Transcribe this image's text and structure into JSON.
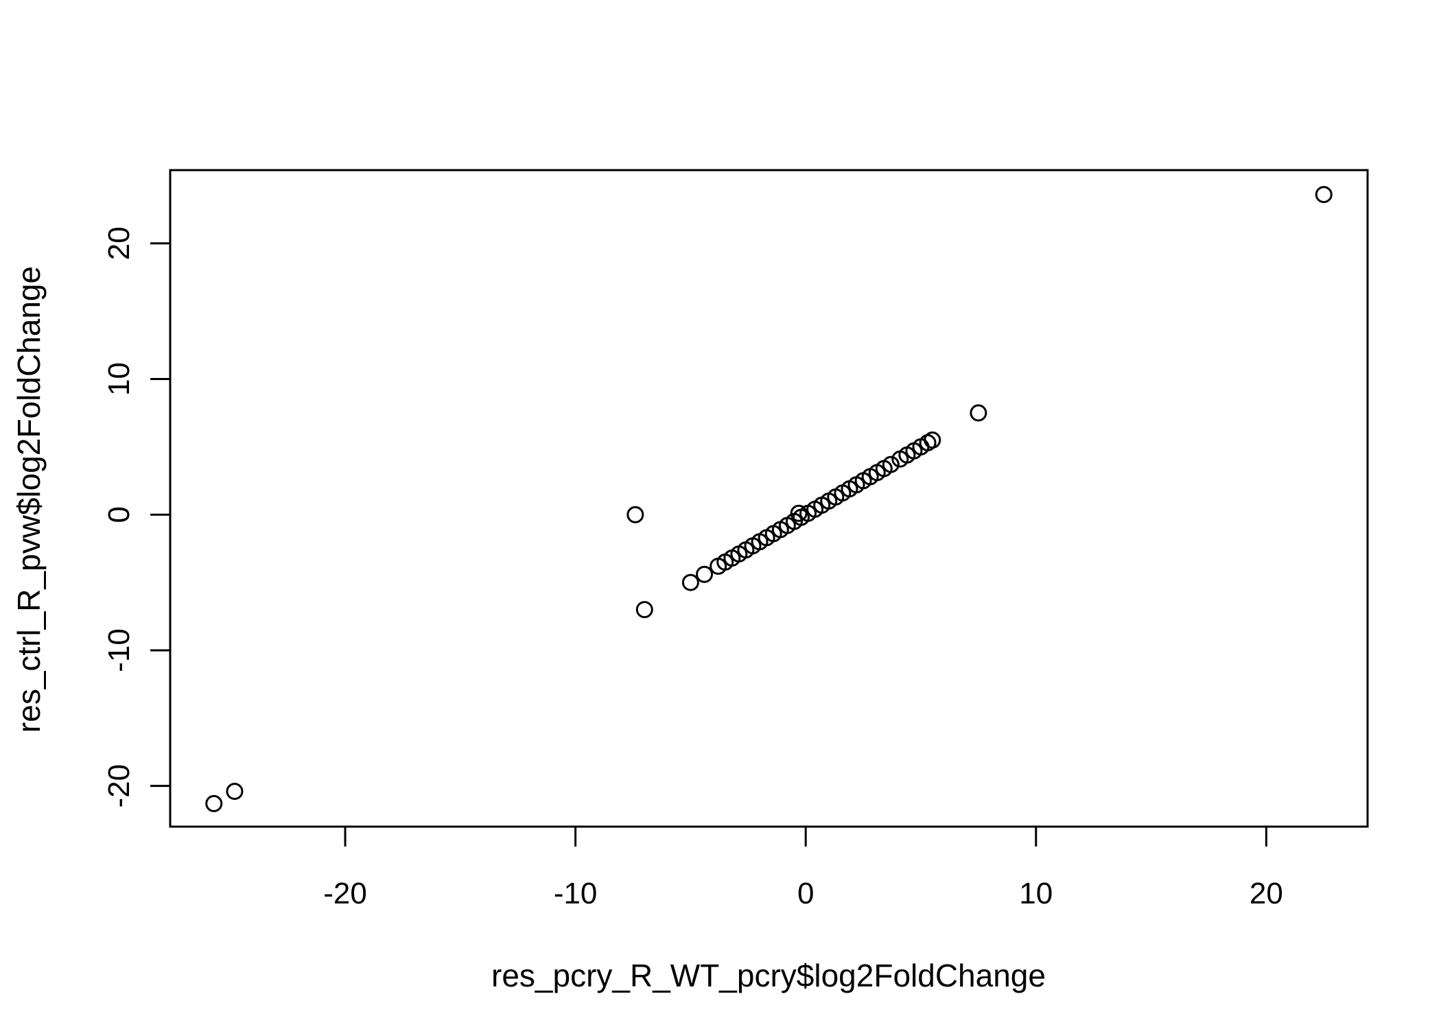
{
  "chart_data": {
    "type": "scatter",
    "title": "",
    "xlabel": "res_pcry_R_WT_pcry$log2FoldChange",
    "ylabel": "res_ctrl_R_pvw$log2FoldChange",
    "xlim": [
      -27.6,
      24.4
    ],
    "ylim": [
      -23.0,
      25.4
    ],
    "x_ticks": [
      -20,
      -10,
      0,
      10,
      20
    ],
    "y_ticks": [
      -20,
      -10,
      0,
      10,
      20
    ],
    "x_tick_labels": [
      "-20",
      "-10",
      "0",
      "10",
      "20"
    ],
    "y_tick_labels": [
      "-20",
      "-10",
      "0",
      "10",
      "20"
    ],
    "grid": false,
    "marker": "open-circle",
    "point_color": "#000000",
    "points": [
      {
        "x": 22.5,
        "y": 23.6
      },
      {
        "x": -25.7,
        "y": -21.3
      },
      {
        "x": -24.8,
        "y": -20.4
      },
      {
        "x": -7.4,
        "y": 0.0
      },
      {
        "x": -7.0,
        "y": -7.0
      },
      {
        "x": 7.5,
        "y": 7.5
      },
      {
        "x": -5.0,
        "y": -5.0
      },
      {
        "x": -4.4,
        "y": -4.4
      },
      {
        "x": -3.8,
        "y": -3.8
      },
      {
        "x": -3.5,
        "y": -3.5
      },
      {
        "x": -3.2,
        "y": -3.2
      },
      {
        "x": -2.9,
        "y": -2.9
      },
      {
        "x": -2.6,
        "y": -2.6
      },
      {
        "x": -2.3,
        "y": -2.3
      },
      {
        "x": -2.0,
        "y": -2.0
      },
      {
        "x": -1.7,
        "y": -1.7
      },
      {
        "x": -1.4,
        "y": -1.4
      },
      {
        "x": -1.1,
        "y": -1.1
      },
      {
        "x": -0.8,
        "y": -0.8
      },
      {
        "x": -0.5,
        "y": -0.5
      },
      {
        "x": -0.3,
        "y": 0.1
      },
      {
        "x": -0.2,
        "y": -0.2
      },
      {
        "x": 0.1,
        "y": 0.1
      },
      {
        "x": 0.4,
        "y": 0.4
      },
      {
        "x": 0.7,
        "y": 0.7
      },
      {
        "x": 1.0,
        "y": 1.0
      },
      {
        "x": 1.3,
        "y": 1.3
      },
      {
        "x": 1.6,
        "y": 1.6
      },
      {
        "x": 1.9,
        "y": 1.9
      },
      {
        "x": 2.2,
        "y": 2.2
      },
      {
        "x": 2.5,
        "y": 2.5
      },
      {
        "x": 2.8,
        "y": 2.8
      },
      {
        "x": 3.1,
        "y": 3.1
      },
      {
        "x": 3.4,
        "y": 3.4
      },
      {
        "x": 3.7,
        "y": 3.7
      },
      {
        "x": 4.1,
        "y": 4.1
      },
      {
        "x": 4.4,
        "y": 4.4
      },
      {
        "x": 4.7,
        "y": 4.7
      },
      {
        "x": 5.0,
        "y": 5.0
      },
      {
        "x": 5.3,
        "y": 5.3
      },
      {
        "x": 5.5,
        "y": 5.5
      }
    ]
  }
}
